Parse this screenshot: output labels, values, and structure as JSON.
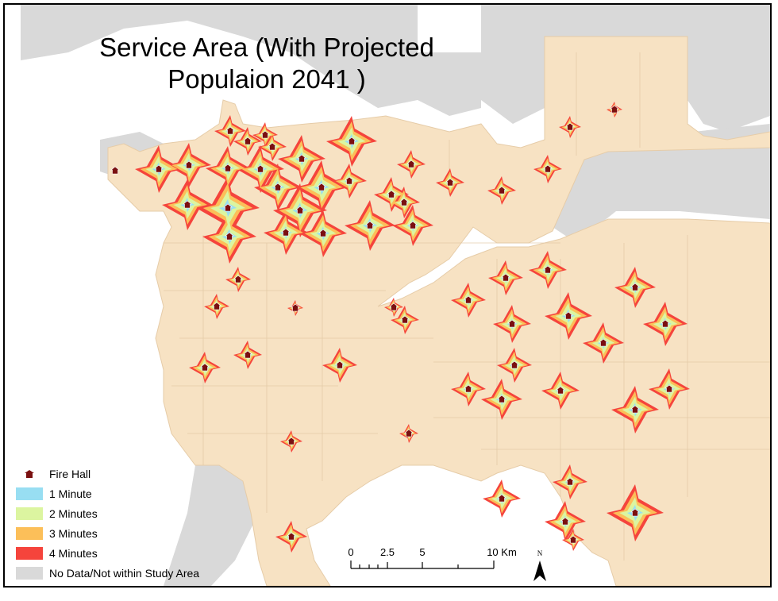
{
  "title_line1": "Service Area (With Projected",
  "title_line2": "Populaion 2041 )",
  "colors": {
    "water": "#ffffff",
    "outside": "#d9d9d9",
    "land": "#f7e2c3",
    "min1": "#98def2",
    "min2": "#dcf5a0",
    "min3": "#fcbf59",
    "min4": "#f5443c",
    "fire_hall": "#7a1010"
  },
  "legend": {
    "fire_hall": "Fire Hall",
    "min1": "1 Minute",
    "min2": "2 Minutes",
    "min3": "3 Minutes",
    "min4": "4 Minutes",
    "no_data": "No Data/Not within Study Area"
  },
  "scale": {
    "t0": "0",
    "t1": "2.5",
    "t2": "5",
    "t3": "10 Km"
  },
  "north_label": "N",
  "fire_halls": [
    {
      "lon": 145,
      "lat": 215,
      "r": 0
    },
    {
      "lon": 200,
      "lat": 213,
      "r": 30
    },
    {
      "lon": 238,
      "lat": 208,
      "r": 28
    },
    {
      "lon": 287,
      "lat": 212,
      "r": 28
    },
    {
      "lon": 290,
      "lat": 165,
      "r": 20
    },
    {
      "lon": 312,
      "lat": 178,
      "r": 18
    },
    {
      "lon": 343,
      "lat": 185,
      "r": 18
    },
    {
      "lon": 334,
      "lat": 170,
      "r": 16
    },
    {
      "lon": 328,
      "lat": 213,
      "r": 30
    },
    {
      "lon": 380,
      "lat": 200,
      "r": 30
    },
    {
      "lon": 443,
      "lat": 178,
      "r": 32
    },
    {
      "lon": 236,
      "lat": 258,
      "r": 32
    },
    {
      "lon": 287,
      "lat": 262,
      "r": 40
    },
    {
      "lon": 350,
      "lat": 236,
      "r": 30
    },
    {
      "lon": 405,
      "lat": 236,
      "r": 34
    },
    {
      "lon": 378,
      "lat": 265,
      "r": 34
    },
    {
      "lon": 440,
      "lat": 228,
      "r": 22
    },
    {
      "lon": 289,
      "lat": 298,
      "r": 34
    },
    {
      "lon": 360,
      "lat": 293,
      "r": 28
    },
    {
      "lon": 407,
      "lat": 294,
      "r": 30
    },
    {
      "lon": 466,
      "lat": 284,
      "r": 32
    },
    {
      "lon": 520,
      "lat": 284,
      "r": 26
    },
    {
      "lon": 493,
      "lat": 245,
      "r": 22
    },
    {
      "lon": 509,
      "lat": 255,
      "r": 20
    },
    {
      "lon": 518,
      "lat": 207,
      "r": 18
    },
    {
      "lon": 567,
      "lat": 230,
      "r": 18
    },
    {
      "lon": 632,
      "lat": 240,
      "r": 18
    },
    {
      "lon": 690,
      "lat": 213,
      "r": 18
    },
    {
      "lon": 718,
      "lat": 160,
      "r": 14
    },
    {
      "lon": 774,
      "lat": 138,
      "r": 10
    },
    {
      "lon": 300,
      "lat": 352,
      "r": 16
    },
    {
      "lon": 273,
      "lat": 386,
      "r": 16
    },
    {
      "lon": 372,
      "lat": 388,
      "r": 10
    },
    {
      "lon": 312,
      "lat": 447,
      "r": 18
    },
    {
      "lon": 258,
      "lat": 463,
      "r": 20
    },
    {
      "lon": 428,
      "lat": 460,
      "r": 22
    },
    {
      "lon": 496,
      "lat": 387,
      "r": 12
    },
    {
      "lon": 510,
      "lat": 403,
      "r": 18
    },
    {
      "lon": 367,
      "lat": 556,
      "r": 14
    },
    {
      "lon": 515,
      "lat": 546,
      "r": 12
    },
    {
      "lon": 590,
      "lat": 378,
      "r": 22
    },
    {
      "lon": 637,
      "lat": 350,
      "r": 22
    },
    {
      "lon": 690,
      "lat": 340,
      "r": 24
    },
    {
      "lon": 645,
      "lat": 408,
      "r": 24
    },
    {
      "lon": 716,
      "lat": 398,
      "r": 30
    },
    {
      "lon": 760,
      "lat": 432,
      "r": 26
    },
    {
      "lon": 800,
      "lat": 362,
      "r": 26
    },
    {
      "lon": 838,
      "lat": 408,
      "r": 28
    },
    {
      "lon": 648,
      "lat": 460,
      "r": 22
    },
    {
      "lon": 590,
      "lat": 490,
      "r": 22
    },
    {
      "lon": 632,
      "lat": 503,
      "r": 26
    },
    {
      "lon": 706,
      "lat": 492,
      "r": 24
    },
    {
      "lon": 800,
      "lat": 516,
      "r": 30
    },
    {
      "lon": 843,
      "lat": 490,
      "r": 26
    },
    {
      "lon": 632,
      "lat": 628,
      "r": 24
    },
    {
      "lon": 718,
      "lat": 607,
      "r": 22
    },
    {
      "lon": 712,
      "lat": 657,
      "r": 26
    },
    {
      "lon": 800,
      "lat": 646,
      "r": 36
    },
    {
      "lon": 722,
      "lat": 680,
      "r": 14
    },
    {
      "lon": 367,
      "lat": 676,
      "r": 20
    }
  ]
}
